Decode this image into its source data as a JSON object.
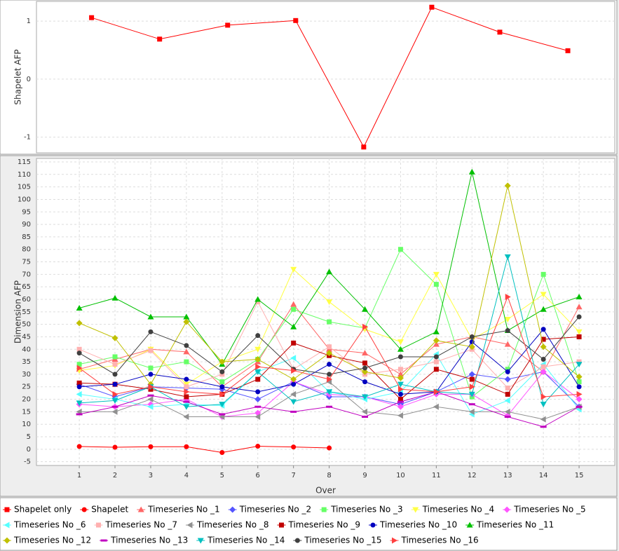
{
  "chart_data": [
    {
      "type": "line",
      "ylabel": "Shapelet AFP",
      "x": [
        1,
        2,
        3,
        4,
        5,
        6,
        7,
        8
      ],
      "xlim": [
        0.19,
        8.69
      ],
      "ylim": [
        -1.27,
        1.34
      ],
      "yticks": [
        -1,
        0,
        1
      ],
      "grid": true,
      "series": [
        {
          "name": "Shapelet only",
          "color": "#ff0000",
          "marker": "square",
          "values": [
            1.06,
            0.69,
            0.93,
            1.01,
            -1.17,
            1.24,
            0.81,
            0.49
          ]
        }
      ]
    },
    {
      "type": "line",
      "ylabel": "Dimension AFP",
      "xlabel": "Over",
      "x": [
        1,
        2,
        3,
        4,
        5,
        6,
        7,
        8,
        9,
        10,
        11,
        12,
        13,
        14,
        15
      ],
      "xlim": [
        -0.2,
        16
      ],
      "xticks": [
        1,
        2,
        3,
        4,
        5,
        6,
        7,
        8,
        9,
        10,
        11,
        12,
        13,
        14,
        15
      ],
      "ylim": [
        -6.5,
        116.4
      ],
      "yticks": [
        -5,
        0,
        5,
        10,
        15,
        20,
        25,
        30,
        35,
        40,
        45,
        50,
        55,
        60,
        65,
        70,
        75,
        80,
        85,
        90,
        95,
        100,
        105,
        110,
        115
      ],
      "grid": true,
      "series": [
        {
          "name": "Shapelet",
          "color": "#ff0000",
          "marker": "circle",
          "values": [
            1.1,
            0.8,
            1.0,
            1.0,
            -1.3,
            1.2,
            0.9,
            0.5,
            null,
            null,
            null,
            null,
            null,
            null,
            null
          ]
        },
        {
          "name": "Timeseries No _1",
          "color": "#ff6666",
          "marker": "up",
          "values": [
            32,
            36,
            40,
            39,
            25,
            35,
            58,
            40,
            38.5,
            30,
            42,
            45,
            42,
            31,
            57
          ]
        },
        {
          "name": "Timeseries No _2",
          "color": "#5555ff",
          "marker": "diamond",
          "values": [
            26,
            21,
            25,
            24.5,
            24,
            20,
            27,
            21,
            21,
            18,
            23,
            30,
            28,
            31,
            17
          ]
        },
        {
          "name": "Timeseries No _3",
          "color": "#66ff66",
          "marker": "square",
          "values": [
            34,
            37,
            32.5,
            35,
            27,
            36,
            56,
            51,
            48.5,
            80,
            66,
            21,
            32,
            70,
            27
          ]
        },
        {
          "name": "Timeseries No _4",
          "color": "#ffff44",
          "marker": "down",
          "values": [
            31.5,
            33.5,
            40,
            26,
            35,
            40,
            72,
            59,
            48,
            43,
            70,
            44,
            52,
            62,
            47
          ]
        },
        {
          "name": "Timeseries No _5",
          "color": "#ff55ff",
          "marker": "diamond",
          "values": [
            18,
            17,
            18,
            20,
            13,
            14.5,
            27,
            22,
            21,
            17,
            22,
            22,
            13.5,
            31,
            20
          ]
        },
        {
          "name": "Timeseries No _6",
          "color": "#55ffff",
          "marker": "left",
          "values": [
            22,
            20,
            17,
            18,
            17.5,
            31,
            36.5,
            23,
            20,
            23,
            38,
            14,
            19.5,
            34,
            16
          ]
        },
        {
          "name": "Timeseries No _7",
          "color": "#ffb0b0",
          "marker": "square",
          "values": [
            40,
            34,
            39.5,
            25,
            30,
            59,
            32,
            41,
            30,
            32,
            35,
            40,
            24.5,
            33,
            35
          ]
        },
        {
          "name": "Timeseries No _8",
          "color": "#909090",
          "marker": "left",
          "values": [
            15,
            15,
            20,
            13,
            13,
            13,
            22,
            27,
            15,
            13.5,
            17,
            15,
            15,
            12,
            17
          ]
        },
        {
          "name": "Timeseries No _9",
          "color": "#c00000",
          "marker": "square",
          "values": [
            26.5,
            26,
            24,
            21,
            22,
            28,
            42.5,
            37.5,
            34.5,
            20,
            32,
            28,
            22,
            44,
            45
          ]
        },
        {
          "name": "Timeseries No _10",
          "color": "#0000c0",
          "marker": "circle",
          "values": [
            25,
            26,
            30,
            28,
            25,
            23,
            26,
            34,
            27,
            22,
            23,
            43,
            31,
            48,
            25
          ]
        },
        {
          "name": "Timeseries No _11",
          "color": "#00c000",
          "marker": "up",
          "values": [
            56.5,
            60.5,
            53,
            53,
            34,
            60,
            49,
            71,
            56,
            40,
            47,
            111,
            47.5,
            56,
            61
          ]
        },
        {
          "name": "Timeseries No _12",
          "color": "#c0c000",
          "marker": "diamond",
          "values": [
            50.5,
            44.5,
            26,
            51,
            35,
            36,
            28,
            38.5,
            31,
            28.5,
            43.5,
            41,
            105.5,
            41,
            29
          ]
        },
        {
          "name": "Timeseries No _13",
          "color": "#c000c0",
          "marker": "dash",
          "values": [
            14,
            17,
            21.5,
            19,
            14,
            17,
            15,
            17,
            13,
            19,
            23,
            18,
            13,
            9,
            17
          ]
        },
        {
          "name": "Timeseries No _14",
          "color": "#00c0c0",
          "marker": "down",
          "values": [
            18.5,
            19.5,
            25,
            17,
            18,
            31,
            19,
            23,
            21,
            26,
            23,
            22,
            77,
            18,
            34
          ]
        },
        {
          "name": "Timeseries No _15",
          "color": "#404040",
          "marker": "circle",
          "values": [
            38.5,
            30,
            47,
            41.5,
            31,
            45.5,
            32,
            30,
            32.5,
            37,
            37,
            45,
            47.5,
            36,
            53
          ]
        },
        {
          "name": "Timeseries No _16",
          "color": "#ff4040",
          "marker": "right",
          "values": [
            32.5,
            22,
            25,
            23,
            22,
            33,
            31.5,
            28,
            49,
            24,
            23,
            25,
            61,
            21,
            22
          ]
        }
      ]
    }
  ]
}
